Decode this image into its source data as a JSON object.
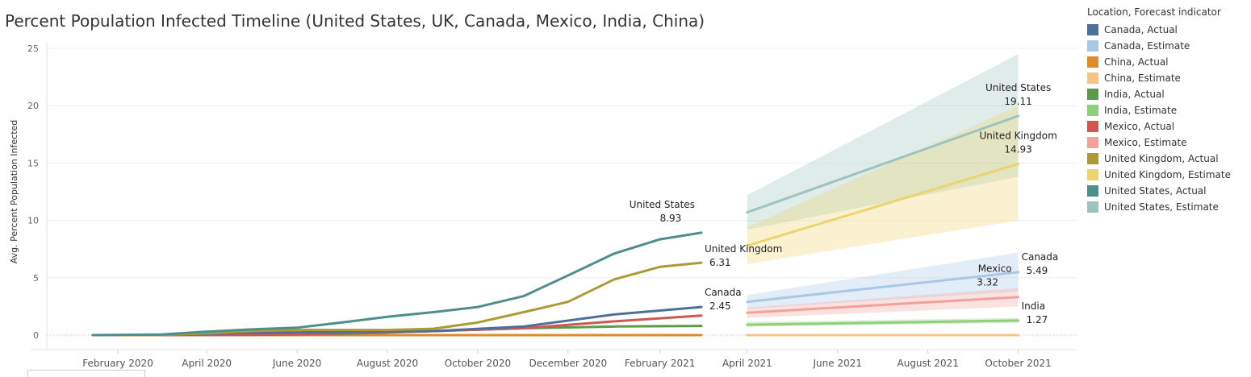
{
  "title": "Percent Population Infected Timeline (United States, UK, Canada, Mexico, India, China)",
  "legend": {
    "title": "Location, Forecast indicator",
    "items": [
      {
        "label": "Canada, Actual",
        "color": "#4e6f9c"
      },
      {
        "label": "Canada, Estimate",
        "color": "#a9c7e6"
      },
      {
        "label": "China, Actual",
        "color": "#e08c2a"
      },
      {
        "label": "China, Estimate",
        "color": "#f5c487"
      },
      {
        "label": "India, Actual",
        "color": "#5a9a48"
      },
      {
        "label": "India, Estimate",
        "color": "#8fd07a"
      },
      {
        "label": "Mexico, Actual",
        "color": "#d2564f"
      },
      {
        "label": "Mexico, Estimate",
        "color": "#f2a29b"
      },
      {
        "label": "United Kingdom, Actual",
        "color": "#ad9a34"
      },
      {
        "label": "United Kingdom, Estimate",
        "color": "#ecd56e"
      },
      {
        "label": "United States, Actual",
        "color": "#4f8f8b"
      },
      {
        "label": "United States, Estimate",
        "color": "#9cc3bd"
      }
    ]
  },
  "chart_data": {
    "type": "line",
    "ylabel": "Avg. Percent Population Infected",
    "ylim": [
      0,
      25
    ],
    "yticks": [
      0,
      5,
      10,
      15,
      20,
      25
    ],
    "grid": true,
    "xlim": [
      "2019-12-15",
      "2021-11-10"
    ],
    "xticks": [
      {
        "date": "2020-02-01",
        "label": "February 2020"
      },
      {
        "date": "2020-04-01",
        "label": "April 2020"
      },
      {
        "date": "2020-06-01",
        "label": "June 2020"
      },
      {
        "date": "2020-08-01",
        "label": "August 2020"
      },
      {
        "date": "2020-10-01",
        "label": "October 2020"
      },
      {
        "date": "2020-12-01",
        "label": "December 2020"
      },
      {
        "date": "2021-02-01",
        "label": "February 2021"
      },
      {
        "date": "2021-04-01",
        "label": "April 2021"
      },
      {
        "date": "2021-06-01",
        "label": "June 2021"
      },
      {
        "date": "2021-08-01",
        "label": "August 2021"
      },
      {
        "date": "2021-10-01",
        "label": "October 2021"
      }
    ],
    "bands": [
      {
        "color": "#9cc3bd",
        "x": [
          "2021-04-01",
          "2021-10-01"
        ],
        "lower": [
          9.2,
          13.8
        ],
        "upper": [
          12.2,
          24.5
        ]
      },
      {
        "color": "#ecd56e",
        "x": [
          "2021-04-01",
          "2021-10-01"
        ],
        "lower": [
          6.2,
          10.0
        ],
        "upper": [
          9.4,
          20.0
        ]
      },
      {
        "color": "#a9c7e6",
        "x": [
          "2021-04-01",
          "2021-10-01"
        ],
        "lower": [
          2.3,
          3.8
        ],
        "upper": [
          3.5,
          7.2
        ]
      },
      {
        "color": "#f2a29b",
        "x": [
          "2021-04-01",
          "2021-10-01"
        ],
        "lower": [
          1.5,
          2.5
        ],
        "upper": [
          2.4,
          4.1
        ]
      },
      {
        "color": "#8fd07a",
        "x": [
          "2021-04-01",
          "2021-10-01"
        ],
        "lower": [
          0.75,
          1.05
        ],
        "upper": [
          1.15,
          1.5
        ]
      }
    ],
    "series": [
      {
        "name": "China, Actual",
        "color": "#e08c2a",
        "x": [
          "2020-01-15",
          "2020-03-01",
          "2020-05-01",
          "2020-07-01",
          "2020-09-01",
          "2020-11-01",
          "2021-01-01",
          "2021-03-01"
        ],
        "y": [
          0,
          0,
          0,
          0,
          0,
          0,
          0,
          0
        ]
      },
      {
        "name": "India, Actual",
        "color": "#5a9a48",
        "x": [
          "2020-01-15",
          "2020-03-01",
          "2020-05-01",
          "2020-07-01",
          "2020-09-01",
          "2020-11-01",
          "2021-01-01",
          "2021-03-01"
        ],
        "y": [
          0,
          0,
          0.02,
          0.1,
          0.35,
          0.6,
          0.75,
          0.8
        ]
      },
      {
        "name": "Mexico, Actual",
        "color": "#d2564f",
        "x": [
          "2020-01-15",
          "2020-03-01",
          "2020-05-01",
          "2020-07-01",
          "2020-09-01",
          "2020-11-01",
          "2021-01-01",
          "2021-03-01"
        ],
        "y": [
          0,
          0,
          0.01,
          0.15,
          0.35,
          0.6,
          1.2,
          1.7
        ]
      },
      {
        "name": "Canada, Actual",
        "color": "#4e6f9c",
        "x": [
          "2020-01-15",
          "2020-03-01",
          "2020-05-01",
          "2020-07-01",
          "2020-09-01",
          "2020-11-01",
          "2021-01-01",
          "2021-03-01"
        ],
        "y": [
          0,
          0.01,
          0.2,
          0.27,
          0.35,
          0.75,
          1.8,
          2.45
        ]
      },
      {
        "name": "United Kingdom, Actual",
        "color": "#ad9a34",
        "x": [
          "2020-01-15",
          "2020-03-01",
          "2020-04-01",
          "2020-05-01",
          "2020-06-01",
          "2020-07-01",
          "2020-08-01",
          "2020-09-01",
          "2020-10-01",
          "2020-11-01",
          "2020-12-01",
          "2021-01-01",
          "2021-02-01",
          "2021-03-01"
        ],
        "y": [
          0,
          0.01,
          0.15,
          0.35,
          0.45,
          0.45,
          0.45,
          0.55,
          1.1,
          2.0,
          2.9,
          4.85,
          5.95,
          6.31
        ]
      },
      {
        "name": "United States, Actual",
        "color": "#4f8f8b",
        "x": [
          "2020-01-15",
          "2020-03-01",
          "2020-04-01",
          "2020-05-01",
          "2020-06-01",
          "2020-07-01",
          "2020-08-01",
          "2020-09-01",
          "2020-10-01",
          "2020-11-01",
          "2020-12-01",
          "2021-01-01",
          "2021-02-01",
          "2021-03-01"
        ],
        "y": [
          0,
          0.05,
          0.3,
          0.5,
          0.65,
          1.1,
          1.6,
          2.0,
          2.45,
          3.4,
          5.2,
          7.1,
          8.35,
          8.93
        ]
      },
      {
        "name": "China, Estimate",
        "color": "#f5c487",
        "x": [
          "2021-04-01",
          "2021-10-01"
        ],
        "y": [
          0,
          0
        ]
      },
      {
        "name": "India, Estimate",
        "color": "#8fd07a",
        "x": [
          "2021-04-01",
          "2021-10-01"
        ],
        "y": [
          0.9,
          1.27
        ]
      },
      {
        "name": "Mexico, Estimate",
        "color": "#f2a29b",
        "x": [
          "2021-04-01",
          "2021-10-01"
        ],
        "y": [
          1.95,
          3.32
        ]
      },
      {
        "name": "Canada, Estimate",
        "color": "#a9c7e6",
        "x": [
          "2021-04-01",
          "2021-10-01"
        ],
        "y": [
          2.9,
          5.49
        ]
      },
      {
        "name": "United Kingdom, Estimate",
        "color": "#ecd56e",
        "x": [
          "2021-04-01",
          "2021-10-01"
        ],
        "y": [
          7.8,
          14.93
        ]
      },
      {
        "name": "United States, Estimate",
        "color": "#9cc3bd",
        "x": [
          "2021-04-01",
          "2021-10-01"
        ],
        "y": [
          10.7,
          19.11
        ]
      }
    ],
    "annotations": [
      {
        "name": "United States",
        "value": "8.93",
        "x": "2021-03-01",
        "y": 8.93,
        "pos": "above-left"
      },
      {
        "name": "United Kingdom",
        "value": "6.31",
        "x": "2021-03-01",
        "y": 6.31,
        "pos": "below-right"
      },
      {
        "name": "Canada",
        "value": "2.45",
        "x": "2021-03-01",
        "y": 2.45,
        "pos": "above-right"
      },
      {
        "name": "United States",
        "value": "19.11",
        "x": "2021-10-01",
        "y": 19.11,
        "pos": "above"
      },
      {
        "name": "United Kingdom",
        "value": "14.93",
        "x": "2021-10-01",
        "y": 14.93,
        "pos": "above"
      },
      {
        "name": "Canada",
        "value": "5.49",
        "x": "2021-10-01",
        "y": 5.49,
        "pos": "right"
      },
      {
        "name": "Mexico",
        "value": "3.32",
        "x": "2021-10-01",
        "y": 3.32,
        "pos": "above-left"
      },
      {
        "name": "India",
        "value": "1.27",
        "x": "2021-10-01",
        "y": 1.27,
        "pos": "above-right"
      }
    ]
  }
}
